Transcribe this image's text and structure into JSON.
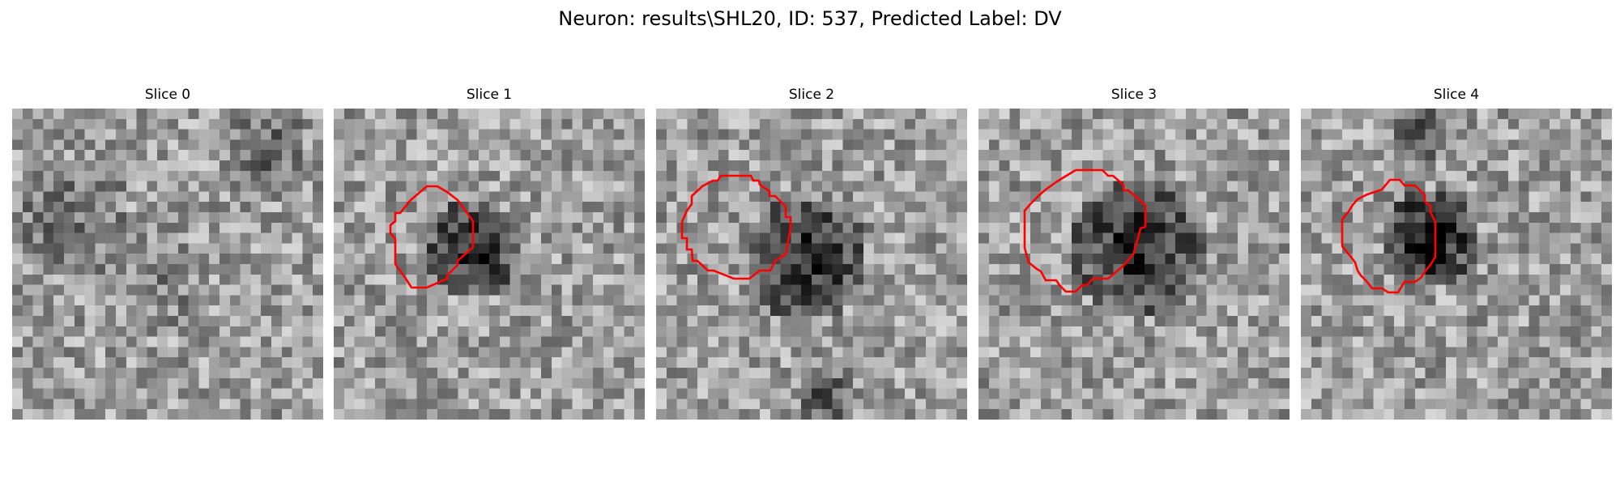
{
  "figure": {
    "title": "Neuron: results\\SHL20, ID: 537, Predicted Label: DV"
  },
  "colors": {
    "contour": "#ff0000",
    "background": "#ffffff",
    "colormap": "grayscale"
  },
  "panels": [
    {
      "title": "Slice 0",
      "has_contour": false
    },
    {
      "title": "Slice 1",
      "has_contour": true
    },
    {
      "title": "Slice 2",
      "has_contour": true
    },
    {
      "title": "Slice 3",
      "has_contour": true
    },
    {
      "title": "Slice 4",
      "has_contour": true
    }
  ]
}
